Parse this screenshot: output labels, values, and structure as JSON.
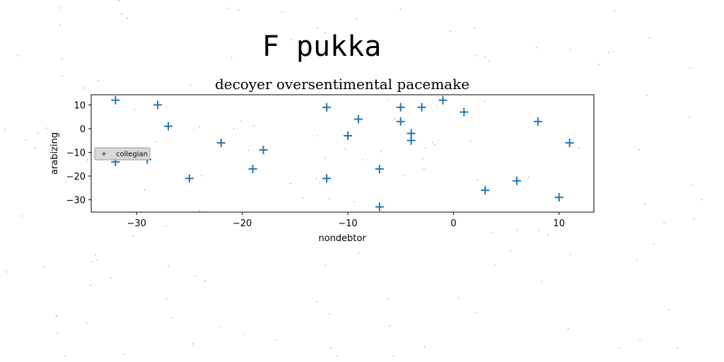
{
  "suptitle": "F pukka",
  "chart_data": {
    "type": "scatter",
    "title": "decoyer oversentimental pacemake",
    "xlabel": "nondebtor",
    "ylabel": "arabizing",
    "xlim": [
      -34.3,
      13.3
    ],
    "ylim": [
      -35.2,
      14.3
    ],
    "xticks": [
      -30,
      -20,
      -10,
      0,
      10
    ],
    "yticks": [
      -30,
      -20,
      -10,
      0,
      10
    ],
    "xtick_labels": [
      "−30",
      "−20",
      "−10",
      "0",
      "10"
    ],
    "ytick_labels": [
      "−30",
      "−20",
      "−10",
      "0",
      "10"
    ],
    "grid": false,
    "legend_position": "center-left",
    "series": [
      {
        "name": "collegian",
        "marker": "+",
        "color": "#1f77b4",
        "points": [
          [
            -32,
            12
          ],
          [
            -32,
            -14
          ],
          [
            -29,
            -13
          ],
          [
            -28,
            10
          ],
          [
            -27,
            1
          ],
          [
            -25,
            -21
          ],
          [
            -22,
            -6
          ],
          [
            -19,
            -17
          ],
          [
            -18,
            -9
          ],
          [
            -12,
            9
          ],
          [
            -12,
            -21
          ],
          [
            -10,
            -3
          ],
          [
            -9,
            4
          ],
          [
            -7,
            -17
          ],
          [
            -7,
            -33
          ],
          [
            -5,
            9
          ],
          [
            -5,
            3
          ],
          [
            -4,
            -2
          ],
          [
            -4,
            -5
          ],
          [
            -3,
            9
          ],
          [
            -1,
            12
          ],
          [
            1,
            7
          ],
          [
            3,
            -26
          ],
          [
            6,
            -22
          ],
          [
            8,
            3
          ],
          [
            10,
            -29
          ],
          [
            11,
            -6
          ]
        ]
      }
    ]
  }
}
